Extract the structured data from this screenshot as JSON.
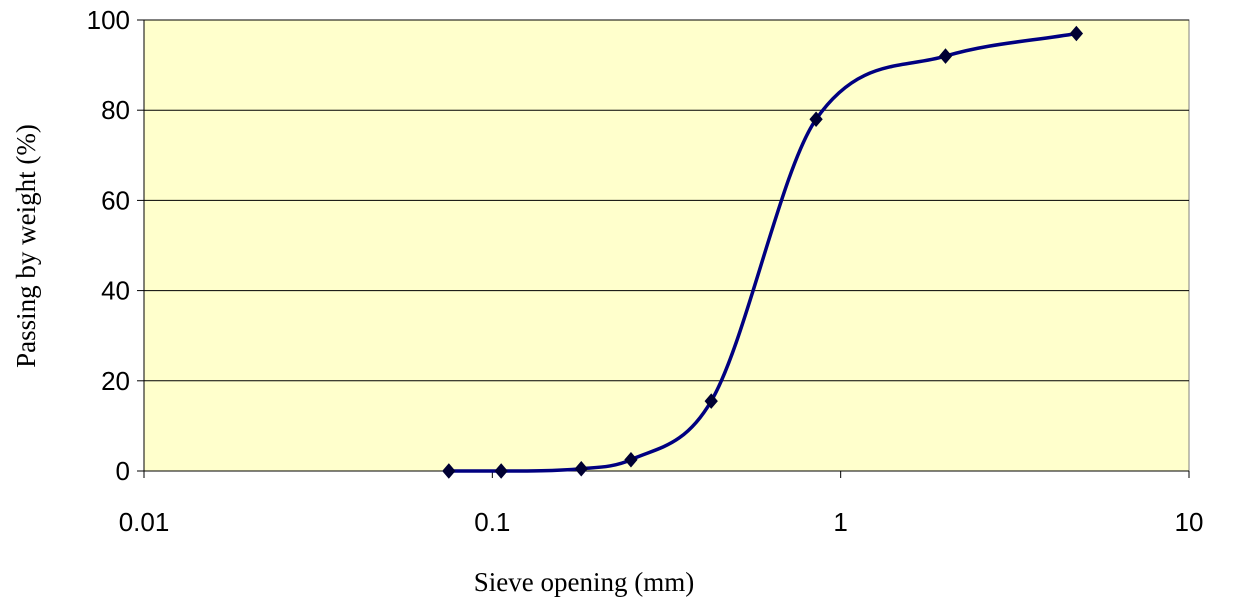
{
  "chart_data": {
    "type": "line",
    "title": "",
    "xlabel": "Sieve opening (mm)",
    "ylabel": "Passing by weight (%)",
    "x_scale": "log",
    "xlim": [
      0.01,
      10
    ],
    "ylim": [
      0,
      100
    ],
    "x_ticks": [
      0.01,
      0.1,
      1,
      10
    ],
    "x_tick_labels": [
      "0.01",
      "0.1",
      "1",
      "10"
    ],
    "y_ticks": [
      0,
      20,
      40,
      60,
      80,
      100
    ],
    "y_tick_labels": [
      "0",
      "20",
      "40",
      "60",
      "80",
      "100"
    ],
    "grid": "horizontal",
    "legend": "none",
    "series": [
      {
        "x": [
          0.075,
          0.106,
          0.18,
          0.25,
          0.425,
          0.85,
          2.0,
          4.75
        ],
        "y": [
          0,
          0,
          0.5,
          2.5,
          15.5,
          78,
          92,
          97
        ],
        "smooth": true,
        "marker": "diamond"
      }
    ],
    "colors": {
      "plot_background": "#ffffcc",
      "line": "#000080",
      "marker": "#000033",
      "axis_title": "#000080",
      "gridline": "#000000"
    }
  }
}
